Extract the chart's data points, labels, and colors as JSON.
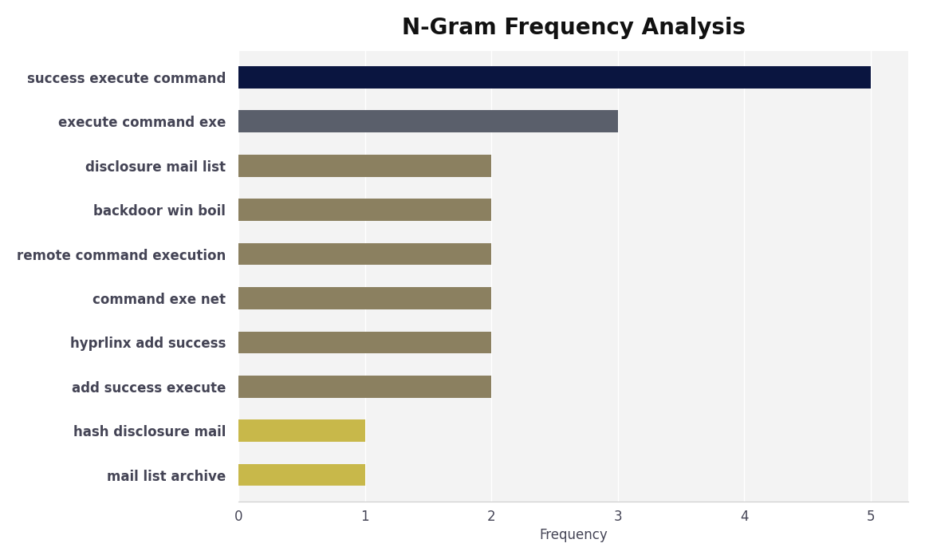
{
  "title": "N-Gram Frequency Analysis",
  "categories": [
    "mail list archive",
    "hash disclosure mail",
    "add success execute",
    "hyprlinx add success",
    "command exe net",
    "remote command execution",
    "backdoor win boil",
    "disclosure mail list",
    "execute command exe",
    "success execute command"
  ],
  "values": [
    1,
    1,
    2,
    2,
    2,
    2,
    2,
    2,
    3,
    5
  ],
  "colors": [
    "#c8b84a",
    "#c8b84a",
    "#8b8060",
    "#8b8060",
    "#8b8060",
    "#8b8060",
    "#8b8060",
    "#8b8060",
    "#5a5f6b",
    "#0a1540"
  ],
  "xlabel": "Frequency",
  "xlim": [
    0,
    5.3
  ],
  "xticks": [
    0,
    1,
    2,
    3,
    4,
    5
  ],
  "plot_bg_color": "#f3f3f3",
  "fig_bg_color": "#ffffff",
  "title_fontsize": 20,
  "label_fontsize": 12,
  "tick_fontsize": 12,
  "label_color": "#444455",
  "bar_height": 0.5
}
